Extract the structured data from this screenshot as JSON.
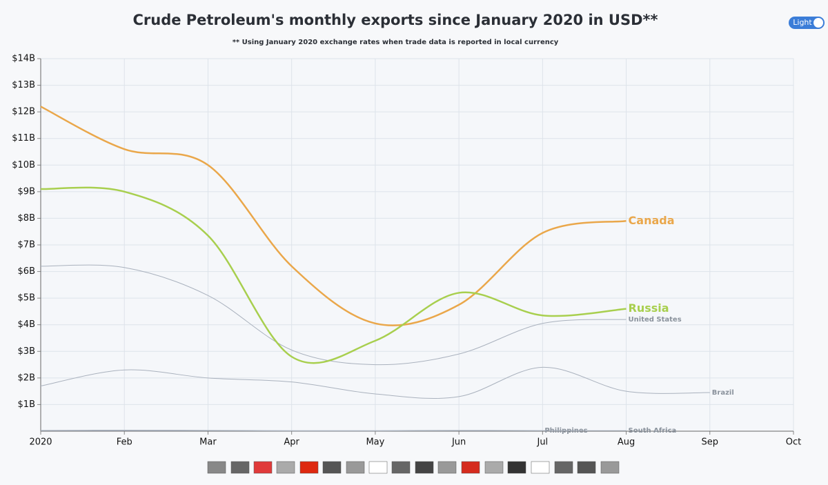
{
  "chart_data": {
    "type": "line",
    "title": "Crude Petroleum's monthly exports since January 2020 in USD**",
    "subtitle": "** Using January 2020 exchange rates when trade data is reported in local currency",
    "categories": [
      "2020",
      "Feb",
      "Mar",
      "Apr",
      "May",
      "Jun",
      "Jul",
      "Aug",
      "Sep",
      "Oct"
    ],
    "ylim": [
      0,
      14
    ],
    "yticks": [
      {
        "value": 1,
        "label": "$1B"
      },
      {
        "value": 2,
        "label": "$2B"
      },
      {
        "value": 3,
        "label": "$3B"
      },
      {
        "value": 4,
        "label": "$4B"
      },
      {
        "value": 5,
        "label": "$5B"
      },
      {
        "value": 6,
        "label": "$6B"
      },
      {
        "value": 7,
        "label": "$7B"
      },
      {
        "value": 8,
        "label": "$8B"
      },
      {
        "value": 9,
        "label": "$9B"
      },
      {
        "value": 10,
        "label": "$10B"
      },
      {
        "value": 11,
        "label": "$11B"
      },
      {
        "value": 12,
        "label": "$12B"
      },
      {
        "value": 13,
        "label": "$13B"
      },
      {
        "value": 14,
        "label": "$14B"
      }
    ],
    "grid": true,
    "series": [
      {
        "name": "United States",
        "color": "#a9b1bd",
        "values": [
          6.2,
          6.15,
          5.1,
          3.05,
          2.5,
          2.9,
          4.05,
          4.2,
          null,
          null
        ]
      },
      {
        "name": "Brazil",
        "color": "#a9b1bd",
        "values": [
          1.7,
          2.3,
          2.0,
          1.85,
          1.4,
          1.3,
          2.4,
          1.5,
          1.45,
          null
        ]
      },
      {
        "name": "Philippines",
        "color": "#a9b1bd",
        "values": [
          0.03,
          0.04,
          0.03,
          0.02,
          0.02,
          0.03,
          0.02,
          null,
          null,
          null
        ]
      },
      {
        "name": "South Africa",
        "color": "#a9b1bd",
        "values": [
          0.02,
          0.02,
          0.02,
          0.01,
          0.01,
          0.02,
          0.02,
          0.02,
          null,
          null
        ]
      },
      {
        "name": "Canada",
        "color": "#eaa74a",
        "values": [
          12.2,
          10.6,
          10.0,
          6.2,
          4.05,
          4.75,
          7.45,
          7.9,
          null,
          null
        ]
      },
      {
        "name": "Russia",
        "color": "#a8cf4e",
        "values": [
          9.1,
          9.0,
          7.35,
          2.8,
          3.4,
          5.2,
          4.35,
          4.6,
          null,
          null
        ]
      }
    ]
  },
  "toggle": {
    "label": "Light"
  }
}
